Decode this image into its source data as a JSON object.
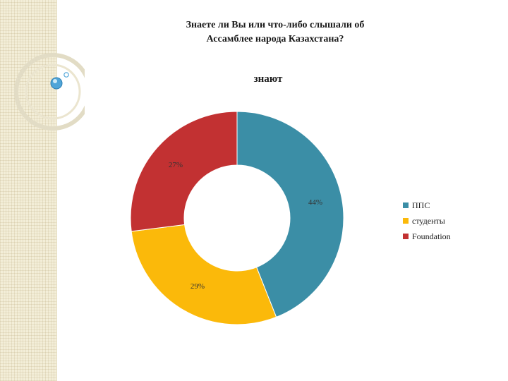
{
  "slide": {
    "title_line1": "Знаете ли Вы или что-либо слышали об",
    "title_line2": "Ассамблее народа Казахстана?"
  },
  "decor": {
    "strip_icon": "patterned-side-strip",
    "bubble_icon": "bubble-circles-icon"
  },
  "colors": {
    "ППС": "#3b8ea6",
    "студенты": "#fbb90a",
    "Foundation": "#c23132"
  },
  "chart_data": {
    "type": "pie",
    "style": "donut",
    "title": "знают",
    "categories": [
      "ППС",
      "студенты",
      "Foundation"
    ],
    "values": [
      44,
      29,
      27
    ],
    "data_labels": [
      "44%",
      "29%",
      "27%"
    ],
    "legend_position": "right"
  }
}
